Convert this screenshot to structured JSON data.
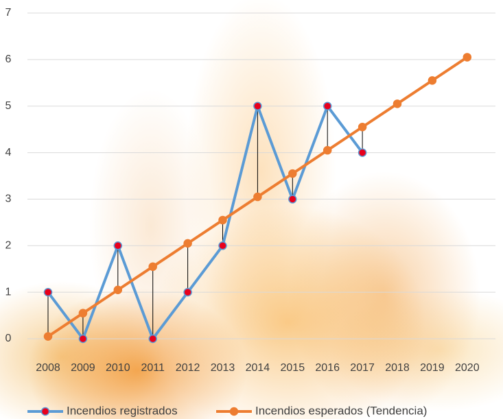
{
  "chart_data": {
    "type": "line",
    "categories": [
      "2008",
      "2009",
      "2010",
      "2011",
      "2012",
      "2013",
      "2014",
      "2015",
      "2016",
      "2017",
      "2018",
      "2019",
      "2020"
    ],
    "series": [
      {
        "name": "Incendios registrados",
        "color": "#5b9bd5",
        "marker_color": "#e8001c",
        "values": [
          1,
          0,
          2,
          0,
          1,
          2,
          5,
          3,
          5,
          4,
          null,
          null,
          null
        ]
      },
      {
        "name": "Incendios esperados (Tendencia)",
        "color": "#ed7d31",
        "marker_color": "#ed7d31",
        "values": [
          0.05,
          0.55,
          1.05,
          1.55,
          2.05,
          2.55,
          3.05,
          3.55,
          4.05,
          4.55,
          5.05,
          5.55,
          6.05
        ]
      }
    ],
    "ylim": [
      0,
      7
    ],
    "yticks": [
      0,
      1,
      2,
      3,
      4,
      5,
      6,
      7
    ],
    "grid": true,
    "drop_lines": true,
    "legend": "bottom"
  }
}
